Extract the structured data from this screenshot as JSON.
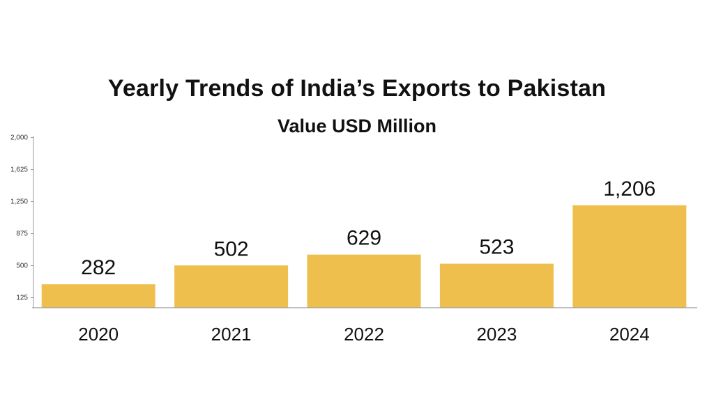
{
  "chart_data": {
    "type": "bar",
    "title": "Yearly Trends of India’s Exports to Pakistan",
    "subtitle": "Value USD Million",
    "xlabel": "",
    "ylabel": "",
    "categories": [
      "2020",
      "2021",
      "2022",
      "2023",
      "2024"
    ],
    "values": [
      282,
      502,
      629,
      523,
      1206
    ],
    "value_labels": [
      "282",
      "502",
      "629",
      "523",
      "1,206"
    ],
    "y_ticks": [
      125,
      500,
      875,
      1250,
      1625,
      2000
    ],
    "y_tick_labels": [
      "125",
      "500",
      "875",
      "1,250",
      "1,625",
      "2,000"
    ],
    "ylim": [
      0,
      2000
    ],
    "grid": false,
    "legend": "none",
    "colors": {
      "bar": "#EFBF4E",
      "axis": "#9A9AA0",
      "text": "#111111"
    }
  }
}
